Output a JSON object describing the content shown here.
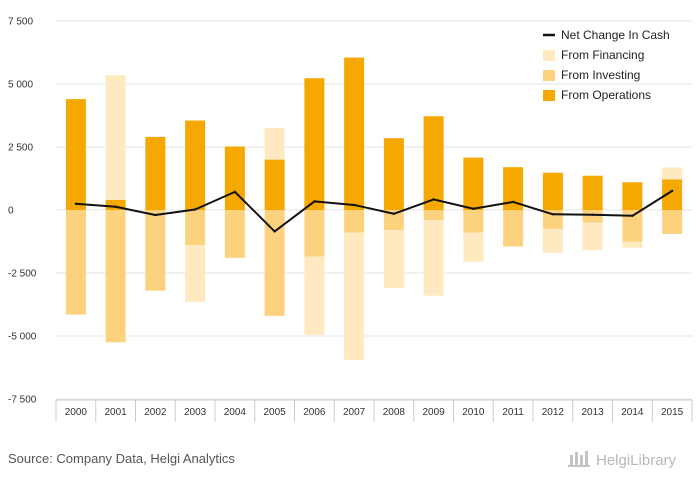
{
  "chart_data": {
    "type": "bar",
    "stacked": true,
    "categories": [
      "2000",
      "2001",
      "2002",
      "2003",
      "2004",
      "2005",
      "2006",
      "2007",
      "2008",
      "2009",
      "2010",
      "2011",
      "2012",
      "2013",
      "2014",
      "2015"
    ],
    "series": [
      {
        "name": "From Operations",
        "kind": "bar",
        "color": "#f5a800",
        "values": [
          4400,
          400,
          2900,
          3550,
          2520,
          2000,
          5230,
          6050,
          2850,
          3720,
          2080,
          1700,
          1480,
          1360,
          1100,
          1210
        ]
      },
      {
        "name": "From Investing",
        "kind": "bar",
        "color": "#fdd27f",
        "values": [
          -4150,
          -5250,
          -3200,
          -1400,
          -1900,
          -4200,
          -1850,
          -900,
          -800,
          -400,
          -900,
          -1450,
          -750,
          -500,
          -1250,
          -950
        ]
      },
      {
        "name": "From Financing",
        "kind": "bar",
        "color": "#fee9c0",
        "values": [
          0,
          4950,
          0,
          -2250,
          0,
          1250,
          -3100,
          -5050,
          -2300,
          -3000,
          -1150,
          0,
          -950,
          -1100,
          -250,
          480
        ]
      },
      {
        "name": "Net Change In Cash",
        "kind": "line",
        "color": "#111111",
        "values": [
          250,
          130,
          -200,
          20,
          720,
          -850,
          340,
          200,
          -150,
          420,
          50,
          320,
          -170,
          -190,
          -230,
          760
        ]
      }
    ],
    "legend_order": [
      "Net Change In Cash",
      "From Financing",
      "From Investing",
      "From Operations"
    ],
    "legend_position": "top-right",
    "ylim": [
      -7500,
      7500
    ],
    "yticks": [
      7500,
      5000,
      2500,
      0,
      -2500,
      -5000,
      -7500
    ],
    "ytick_labels": [
      "7 500",
      "5 000",
      "2 500",
      "0",
      "-2 500",
      "-5 000",
      "-7 500"
    ],
    "grid": true,
    "title": "",
    "xlabel": "",
    "ylabel": ""
  },
  "footer": {
    "source": "Source: Company Data, Helgi Analytics",
    "brand": "HelgiLibrary"
  },
  "colors": {
    "grid": "#e4e4e4",
    "axis": "#cccccc"
  }
}
